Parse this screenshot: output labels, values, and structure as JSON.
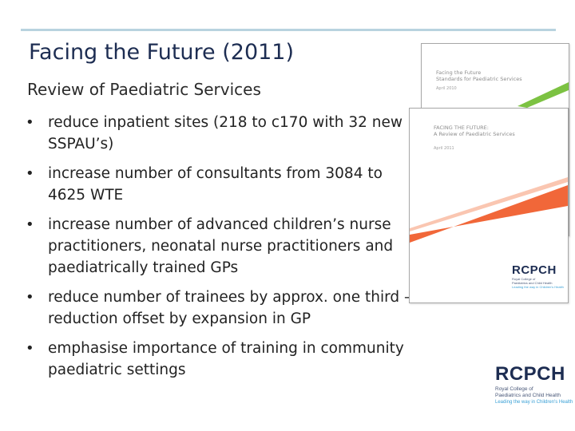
{
  "slide": {
    "title": "Facing the Future (2011)",
    "subtitle": "Review of Paediatric Services",
    "bullets": [
      "reduce inpatient sites (218 to c170 with 32 new SSPAU’s)",
      "increase number of consultants from 3084 to 4625 WTE",
      "increase number of advanced children’s nurse practitioners, neonatal nurse practitioners and paediatrically trained GPs",
      "reduce number of trainees by approx. one third – reduction offset by expansion in GP",
      "emphasise importance of training in community paediatric settings"
    ],
    "bullet_icon": "bullet-dot"
  },
  "cover_back": {
    "title_line1": "Facing the Future",
    "title_line2": "Standards for Paediatric Services",
    "date": "April 2010",
    "stripe_color": "#7cc242"
  },
  "cover_front": {
    "title_line1": "FACING THE FUTURE:",
    "title_line2": "A Review of Paediatric Services",
    "date": "April 2011",
    "stripe_color": "#f05a28",
    "logo_word": "RCPCH",
    "logo_sub1": "Royal College of",
    "logo_sub2": "Paediatrics and Child Health",
    "logo_tag": "Leading the way in Children's Health"
  },
  "corner_logo": {
    "logo_word": "RCPCH",
    "logo_sub1": "Royal College of",
    "logo_sub2": "Paediatrics and Child Health",
    "logo_tag": "Leading the way in Children's Health",
    "brand_color": "#1d2d52",
    "accent_color": "#39a0d6"
  }
}
